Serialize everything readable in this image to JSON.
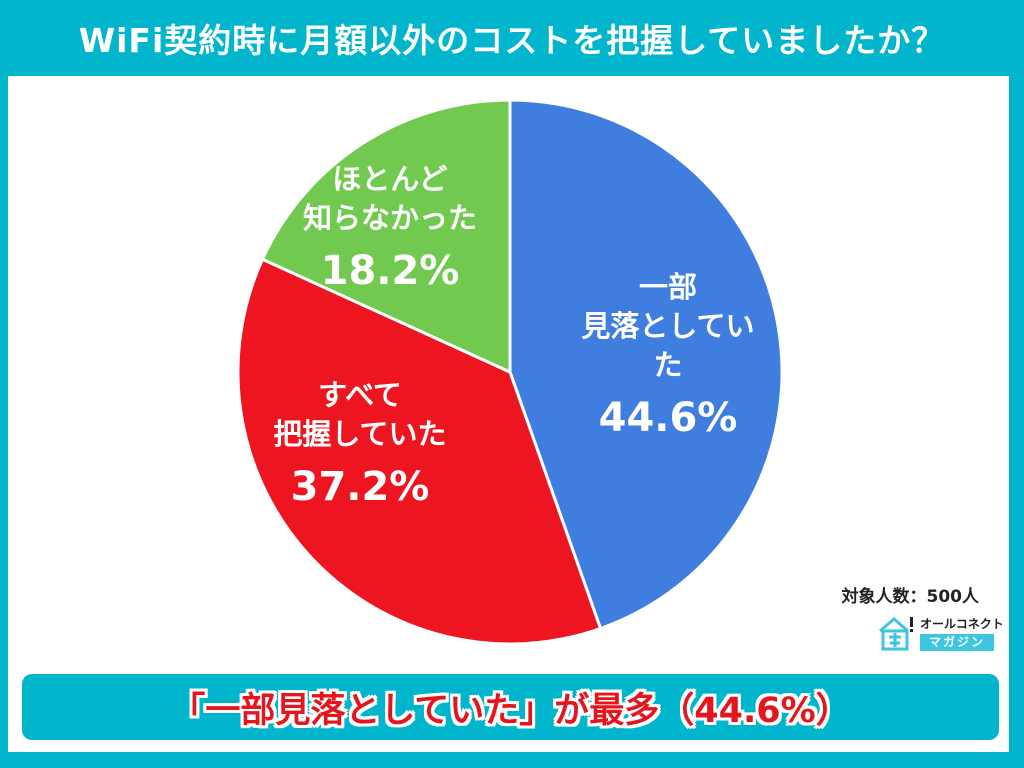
{
  "header": {
    "title": "WiFi契約時に月額以外のコストを把握していましたか？"
  },
  "chart_data": {
    "type": "pie",
    "title": "WiFi契約時に月額以外のコストを把握していましたか？",
    "categories": [
      "一部見落としていた",
      "すべて把握していた",
      "ほとんど知らなかった"
    ],
    "values": [
      44.6,
      37.2,
      18.2
    ],
    "colors": [
      "#3f7ddf",
      "#ec1520",
      "#71c94f"
    ],
    "start_angle": "12 o'clock, clockwise"
  },
  "slices": [
    {
      "label_line1": "一部",
      "label_line2": "見落としていた",
      "value": "44.6%",
      "color": "#3f7ddf"
    },
    {
      "label_line1": "すべて",
      "label_line2": "把握していた",
      "value": "37.2%",
      "color": "#ec1520"
    },
    {
      "label_line1": "ほとんど",
      "label_line2": "知らなかった",
      "value": "18.2%",
      "color": "#71c94f"
    }
  ],
  "sample_size": "対象人数：500人",
  "logo": {
    "line1": "オールコネクト",
    "line2": "マガジン",
    "icon": "house-icon"
  },
  "summary": {
    "text": "「一部見落としていた」が最多（44.6%）"
  },
  "colors": {
    "frame": "#00b5cc",
    "banner_text": "#e5151d"
  }
}
